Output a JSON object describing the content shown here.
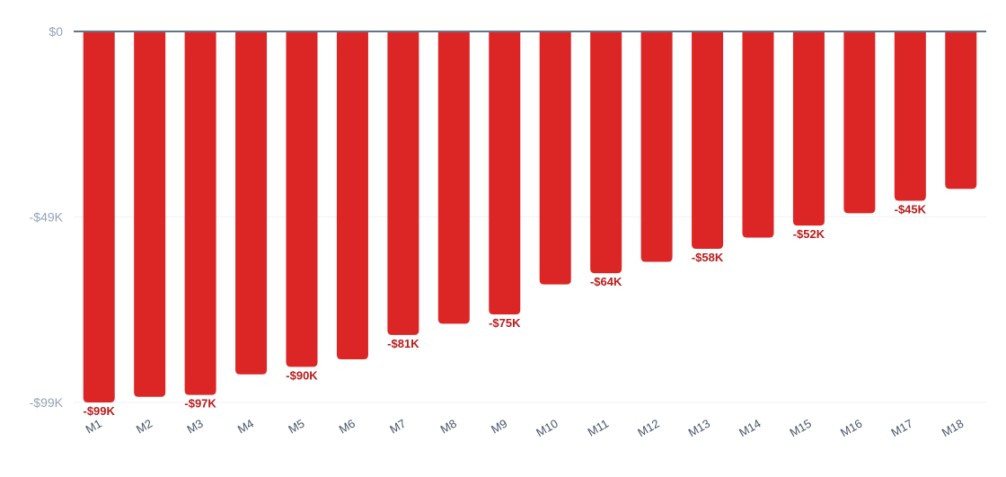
{
  "chart_data": {
    "type": "bar",
    "categories": [
      "M1",
      "M2",
      "M3",
      "M4",
      "M5",
      "M6",
      "M7",
      "M8",
      "M9",
      "M10",
      "M11",
      "M12",
      "M13",
      "M14",
      "M15",
      "M16",
      "M17",
      "M18"
    ],
    "values": [
      -99,
      -97.5,
      -97,
      -91.5,
      -89.5,
      -87.5,
      -81,
      -78,
      -75.5,
      -67.5,
      -64.5,
      -61.5,
      -58,
      -55,
      -51.8,
      -48.5,
      -45.2,
      -42
    ],
    "value_unit": "thousand USD",
    "data_labels": [
      "-$99K",
      "",
      "-$97K",
      "",
      "-$90K",
      "",
      "-$81K",
      "",
      "-$75K",
      "",
      "-$64K",
      "",
      "-$58K",
      "",
      "-$52K",
      "",
      "-$45K",
      ""
    ],
    "yticks": [
      {
        "value": 0,
        "label": "$0"
      },
      {
        "value": -49.5,
        "label": "-$49K"
      },
      {
        "value": -99,
        "label": "-$99K"
      }
    ],
    "ylim": [
      -99,
      0
    ],
    "grid": true,
    "bar_color": "#dc2626",
    "label_color": "#b91c1c",
    "baseline_color": "#64748b",
    "grid_color": "#eef2f7",
    "title": "",
    "xlabel": "",
    "ylabel": ""
  }
}
